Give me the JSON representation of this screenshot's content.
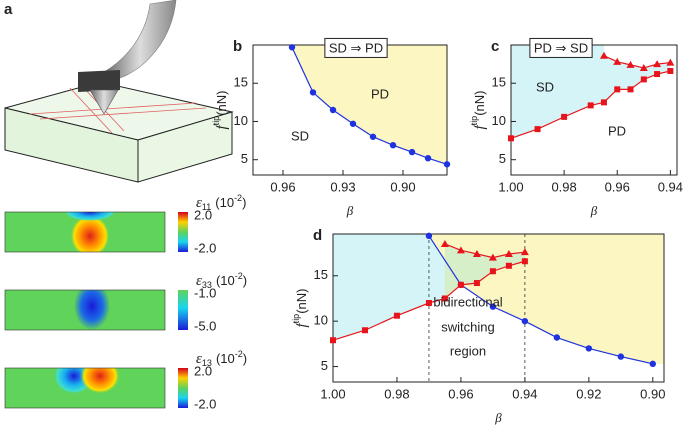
{
  "panel_a": {
    "label": "a",
    "maps": [
      {
        "symbol": "ε",
        "subscript": "11",
        "unit": "(10",
        "exponent": "-2",
        "unit_end": ")",
        "ticks": [
          "2.0",
          "-2.0"
        ]
      },
      {
        "symbol": "ε",
        "subscript": "33",
        "unit": "(10",
        "exponent": "-2",
        "unit_end": ")",
        "ticks": [
          "-1.0",
          "-5.0"
        ]
      },
      {
        "symbol": "ε",
        "subscript": "13",
        "unit": "(10",
        "exponent": "-2",
        "unit_end": ")",
        "ticks": [
          "2.0",
          "-2.0"
        ]
      }
    ]
  },
  "chart_data": [
    {
      "type": "line",
      "panel_label": "b",
      "title": "SD ⇒ PD",
      "annotations": [
        "PD",
        "SD"
      ],
      "xlabel": "β",
      "ylabel": "f",
      "ylabel_sup": "tip",
      "ylabel_unit": "(nN)",
      "xlim": [
        0.975,
        0.878
      ],
      "xticks": [
        0.96,
        0.93,
        {
          "value": 0.9,
          "label": "0.90"
        }
      ],
      "ylim": [
        3,
        20
      ],
      "yticks": [
        5,
        10,
        15
      ],
      "series": [
        {
          "color": "#1f32e0",
          "marker": "circle",
          "x": [
            0.9555,
            0.945,
            0.935,
            0.925,
            0.915,
            0.905,
            0.8955,
            0.8875,
            0.878
          ],
          "values": [
            19.7,
            13.8,
            11.5,
            9.7,
            8.0,
            6.9,
            6.0,
            5.2,
            4.4
          ]
        }
      ]
    },
    {
      "type": "line",
      "panel_label": "c",
      "title": "PD ⇒ SD",
      "annotations": [
        "SD",
        "PD"
      ],
      "xlabel": "β",
      "ylabel": "f",
      "ylabel_sup": "tip",
      "ylabel_unit": "(nN)",
      "xlim": [
        1.0,
        0.9375
      ],
      "xticks": [
        {
          "value": 1,
          "label": "1.00"
        },
        0.98,
        0.96,
        0.94
      ],
      "ylim": [
        3,
        20
      ],
      "yticks": [
        5,
        10,
        15
      ],
      "series": [
        {
          "color": "#e8141c",
          "marker": "square",
          "x": [
            1.0,
            0.99,
            0.98,
            0.97,
            0.965,
            0.96,
            0.955,
            0.95,
            0.945,
            0.94
          ],
          "values": [
            7.8,
            9.0,
            10.6,
            12.1,
            12.5,
            14.2,
            14.2,
            15.5,
            16.2,
            16.6
          ]
        },
        {
          "color": "#e8141c",
          "marker": "triangle",
          "x": [
            0.965,
            0.96,
            0.955,
            0.95,
            0.945,
            0.94
          ],
          "values": [
            18.6,
            17.8,
            17.4,
            17.0,
            17.5,
            17.7
          ]
        }
      ]
    },
    {
      "type": "line",
      "panel_label": "d",
      "annotations": [
        "bidirectional",
        "switching",
        "region"
      ],
      "xlabel": "β",
      "ylabel": "f",
      "ylabel_sup": "tip",
      "ylabel_unit": "(nN)",
      "xlim": [
        1.0,
        0.8965
      ],
      "xticks": [
        {
          "value": 1,
          "label": "1.00"
        },
        0.98,
        0.96,
        0.94,
        0.92,
        {
          "value": 0.9,
          "label": "0.90"
        }
      ],
      "ylim": [
        3.3,
        19.6
      ],
      "yticks": [
        5,
        10,
        15
      ],
      "vlines": [
        0.97,
        0.94
      ],
      "series": [
        {
          "color": "#1f32e0",
          "marker": "circle",
          "x": [
            0.97,
            0.96,
            0.95,
            0.94,
            0.93,
            0.92,
            0.91,
            0.9
          ],
          "values": [
            19.4,
            14.0,
            11.6,
            10.0,
            8.2,
            7.0,
            6.1,
            5.3
          ]
        },
        {
          "color": "#e8141c",
          "marker": "square",
          "x": [
            1.0,
            0.99,
            0.98,
            0.97,
            0.965,
            0.96,
            0.955,
            0.95,
            0.945,
            0.94
          ],
          "values": [
            7.9,
            9.0,
            10.6,
            12.0,
            12.5,
            14.0,
            14.2,
            15.5,
            16.1,
            16.6
          ]
        },
        {
          "color": "#e8141c",
          "marker": "triangle",
          "x": [
            0.965,
            0.96,
            0.955,
            0.95,
            0.945,
            0.94
          ],
          "values": [
            18.5,
            17.8,
            17.4,
            17.0,
            17.4,
            17.6
          ]
        }
      ]
    }
  ]
}
